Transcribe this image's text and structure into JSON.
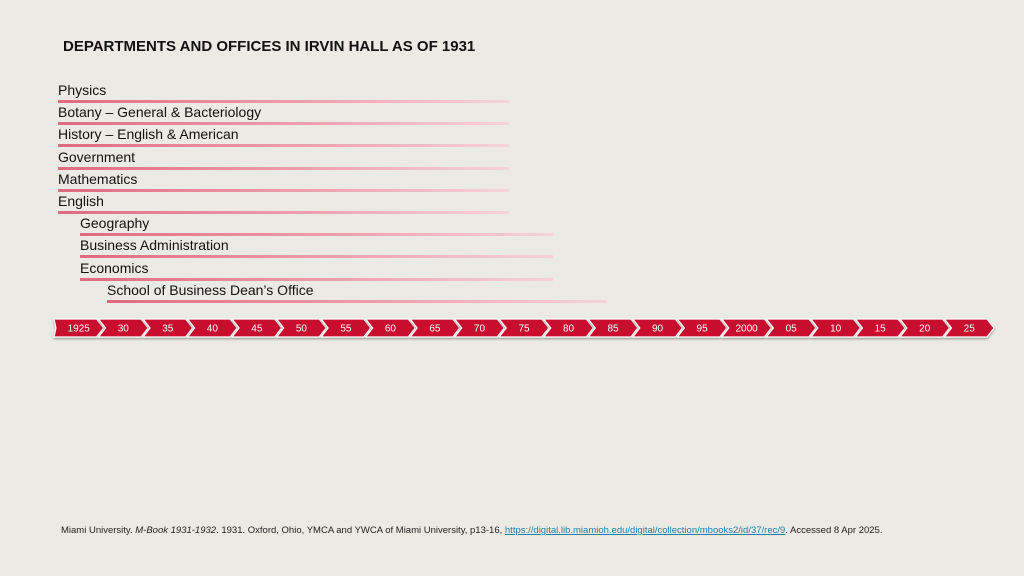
{
  "title": "DEPARTMENTS AND OFFICES IN IRVIN HALL AS OF 1931",
  "departments": [
    {
      "label": "Physics",
      "indent": 0
    },
    {
      "label": "Botany – General & Bacteriology",
      "indent": 0
    },
    {
      "label": "History – English & American",
      "indent": 0
    },
    {
      "label": "Government",
      "indent": 0
    },
    {
      "label": "Mathematics",
      "indent": 0
    },
    {
      "label": "English",
      "indent": 0
    },
    {
      "label": "Geography",
      "indent": 1
    },
    {
      "label": "Business Administration",
      "indent": 1
    },
    {
      "label": "Economics",
      "indent": 1
    },
    {
      "label": "School of Business Dean’s Office",
      "indent": 2
    }
  ],
  "timeline": {
    "labels": [
      "1925",
      "30",
      "35",
      "40",
      "45",
      "50",
      "55",
      "60",
      "65",
      "70",
      "75",
      "80",
      "85",
      "90",
      "95",
      "2000",
      "05",
      "10",
      "15",
      "20",
      "25"
    ],
    "color": "#c8102e"
  },
  "citation": {
    "author": "Miami University. ",
    "work_title": "M-Book 1931-1932",
    "details": ". 1931. Oxford, Ohio, YMCA and YWCA of Miami University, p13-16, ",
    "url": "https://digital.lib.miamioh.edu/digital/collection/mbooks2/id/37/rec/9",
    "accessed": ". Accessed 8 Apr 2025."
  }
}
